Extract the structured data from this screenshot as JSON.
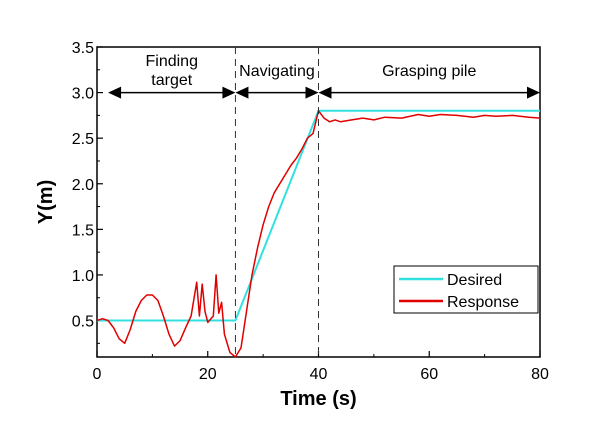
{
  "chart_data": {
    "type": "line",
    "xlabel": "Time (s)",
    "ylabel": "Y(m)",
    "xlim": [
      0,
      80
    ],
    "ylim": [
      0.1,
      3.5
    ],
    "xticks": [
      "0",
      "20",
      "40",
      "60",
      "80"
    ],
    "xtick_values": [
      0,
      20,
      40,
      60,
      80
    ],
    "yticks": [
      "0.5",
      "1.0",
      "1.5",
      "2.0",
      "2.5",
      "3.0",
      "3.5"
    ],
    "ytick_values": [
      0.5,
      1.0,
      1.5,
      2.0,
      2.5,
      3.0,
      3.5
    ],
    "grid": false,
    "legend_position": "lower-right",
    "phase_boundaries": [
      25,
      40
    ],
    "phases": [
      {
        "label_lines": [
          "Finding",
          "target"
        ],
        "start": 2,
        "end": 25
      },
      {
        "label_lines": [
          "Navigating"
        ],
        "start": 25,
        "end": 40
      },
      {
        "label_lines": [
          "Grasping pile"
        ],
        "start": 40,
        "end": 80
      }
    ],
    "series": [
      {
        "name": "Desired",
        "color": "#33e0e0",
        "x": [
          0,
          25,
          40,
          80
        ],
        "y": [
          0.5,
          0.5,
          2.8,
          2.8
        ]
      },
      {
        "name": "Response",
        "color": "#e00000",
        "x": [
          0,
          1,
          2,
          3,
          4,
          5,
          6,
          7,
          8,
          9,
          10,
          11,
          12,
          13,
          14,
          15,
          16,
          17,
          18,
          18.5,
          19,
          19.5,
          20,
          21,
          21.5,
          22,
          22.5,
          23,
          24,
          25,
          26,
          27,
          28,
          29,
          30,
          31,
          32,
          33,
          34,
          35,
          36,
          37,
          38,
          39,
          40,
          41,
          42,
          43,
          44,
          46,
          48,
          50,
          52,
          55,
          58,
          60,
          62,
          65,
          68,
          70,
          72,
          75,
          78,
          80
        ],
        "y": [
          0.5,
          0.52,
          0.5,
          0.42,
          0.3,
          0.25,
          0.4,
          0.6,
          0.72,
          0.78,
          0.78,
          0.72,
          0.55,
          0.35,
          0.22,
          0.28,
          0.42,
          0.55,
          0.92,
          0.55,
          0.9,
          0.6,
          0.48,
          0.55,
          1.0,
          0.58,
          0.7,
          0.35,
          0.15,
          0.1,
          0.2,
          0.6,
          1.0,
          1.3,
          1.55,
          1.75,
          1.9,
          2.0,
          2.1,
          2.2,
          2.28,
          2.38,
          2.5,
          2.55,
          2.8,
          2.72,
          2.68,
          2.7,
          2.68,
          2.7,
          2.72,
          2.7,
          2.73,
          2.72,
          2.76,
          2.74,
          2.76,
          2.75,
          2.73,
          2.75,
          2.74,
          2.75,
          2.73,
          2.72
        ]
      }
    ]
  }
}
